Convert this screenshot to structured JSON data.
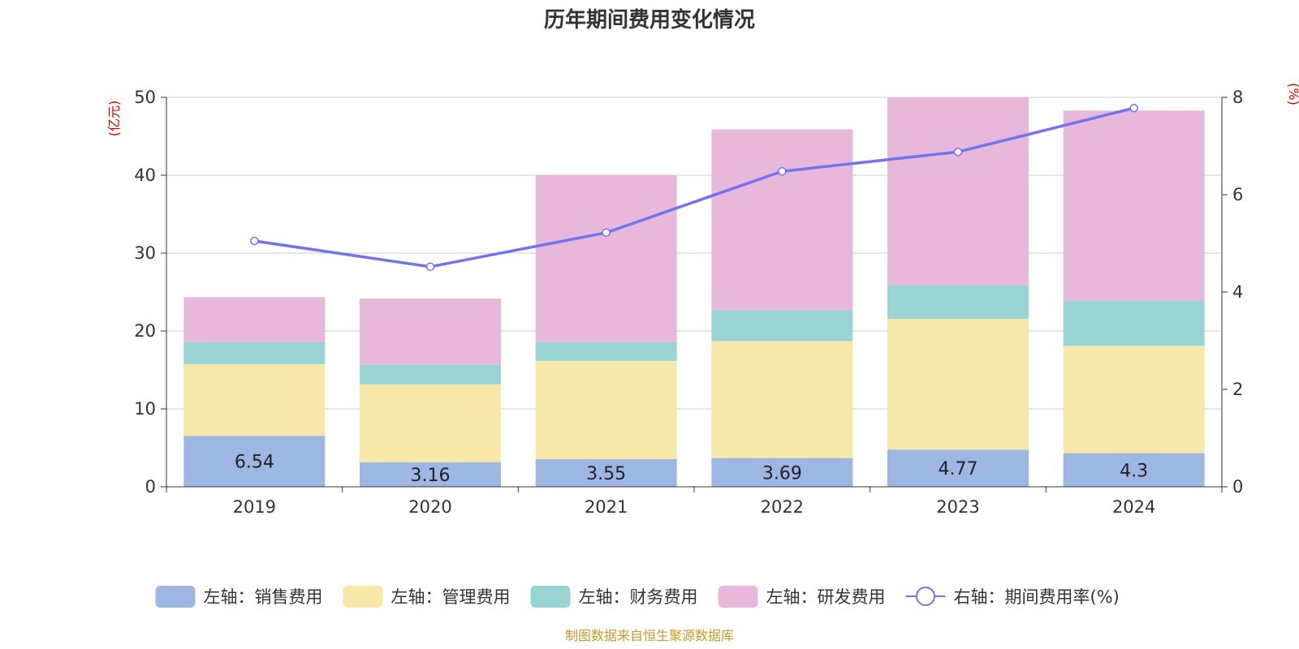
{
  "colors": {
    "series": [
      "#9db7e3",
      "#f8e7a8",
      "#98d4d4",
      "#e7b8d9"
    ],
    "line": "#7373f0",
    "grid": "#cccccc",
    "axis": "#333333",
    "unit": "#e00000",
    "source": "#c9992e"
  },
  "chart_data": {
    "type": "bar",
    "stacked": true,
    "title": "历年期间费用变化情况",
    "categories": [
      "2019",
      "2020",
      "2021",
      "2022",
      "2023",
      "2024"
    ],
    "left_axis": {
      "unit": "(亿元)",
      "ylim": [
        0,
        50
      ],
      "ticks": [
        0,
        10,
        20,
        30,
        40,
        50
      ]
    },
    "right_axis": {
      "unit": "(%)",
      "ylim": [
        0,
        8
      ],
      "ticks": [
        0,
        2,
        4,
        6,
        8
      ]
    },
    "series": [
      {
        "name": "左轴：销售费用",
        "axis": "left",
        "values": [
          6.54,
          3.16,
          3.55,
          3.69,
          4.77,
          4.3
        ],
        "labels": [
          "6.54",
          "3.16",
          "3.55",
          "3.69",
          "4.77",
          "4.3"
        ]
      },
      {
        "name": "左轴：管理费用",
        "axis": "left",
        "values": [
          9.2,
          10.0,
          12.6,
          15.0,
          16.8,
          13.8
        ]
      },
      {
        "name": "左轴：财务费用",
        "axis": "left",
        "values": [
          2.8,
          2.5,
          2.4,
          4.0,
          4.3,
          5.8
        ]
      },
      {
        "name": "左轴：研发费用",
        "axis": "left",
        "values": [
          5.8,
          8.5,
          21.5,
          23.2,
          24.1,
          24.4
        ]
      }
    ],
    "line_series": {
      "name": "右轴：期间费用率(%)",
      "axis": "right",
      "values": [
        5.05,
        4.52,
        5.22,
        6.48,
        6.88,
        7.78
      ]
    },
    "source": "制图数据来自恒生聚源数据库"
  }
}
